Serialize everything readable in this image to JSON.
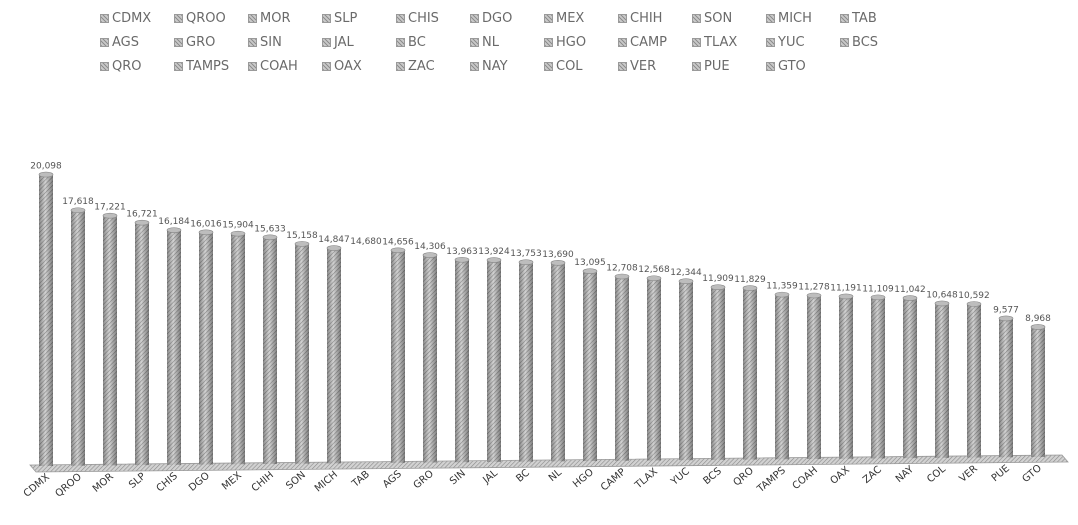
{
  "chart_data": {
    "type": "bar",
    "categories": [
      "CDMX",
      "QROO",
      "MOR",
      "SLP",
      "CHIS",
      "DGO",
      "MEX",
      "CHIH",
      "SON",
      "MICH",
      "TAB",
      "AGS",
      "GRO",
      "SIN",
      "JAL",
      "BC",
      "NL",
      "HGO",
      "CAMP",
      "TLAX",
      "YUC",
      "BCS",
      "QRO",
      "TAMPS",
      "COAH",
      "OAX",
      "ZAC",
      "NAY",
      "COL",
      "VER",
      "PUE",
      "GTO"
    ],
    "values": [
      20098,
      17618,
      17221,
      16721,
      16184,
      16016,
      15904,
      15633,
      15158,
      14847,
      null,
      14656,
      14306,
      13963,
      13924,
      13753,
      13690,
      13095,
      12708,
      12568,
      12344,
      11909,
      11829,
      11359,
      11278,
      11191,
      11109,
      11042,
      10648,
      10592,
      9577,
      8968
    ],
    "data_labels": [
      "20,098",
      "17,618",
      "17,221",
      "16,721",
      "16,184",
      "16,016",
      "15,904",
      "15,633",
      "15,158",
      "14,847",
      "14,680",
      "14,656",
      "14,306",
      "13,963",
      "13,924",
      "13,753",
      "13,690",
      "13,095",
      "12,708",
      "12,568",
      "12,344",
      "11,909",
      "11,829",
      "11,359",
      "11,278",
      "11,191",
      "11,109",
      "11,042",
      "10,648",
      "10,592",
      "9,577",
      "8,968"
    ],
    "legend": [
      "CDMX",
      "QROO",
      "MOR",
      "SLP",
      "CHIS",
      "DGO",
      "MEX",
      "CHIH",
      "SON",
      "MICH",
      "TAB",
      "AGS",
      "GRO",
      "SIN",
      "JAL",
      "BC",
      "NL",
      "HGO",
      "CAMP",
      "TLAX",
      "YUC",
      "BCS",
      "QRO",
      "TAMPS",
      "COAH",
      "OAX",
      "ZAC",
      "NAY",
      "COL",
      "VER",
      "PUE",
      "GTO"
    ],
    "legend_placement": "top",
    "ylim": [
      0,
      21000
    ],
    "grid": false,
    "bar_style": "3d-cylinder-hatched-gray",
    "title": "",
    "xlabel": "",
    "ylabel": ""
  }
}
